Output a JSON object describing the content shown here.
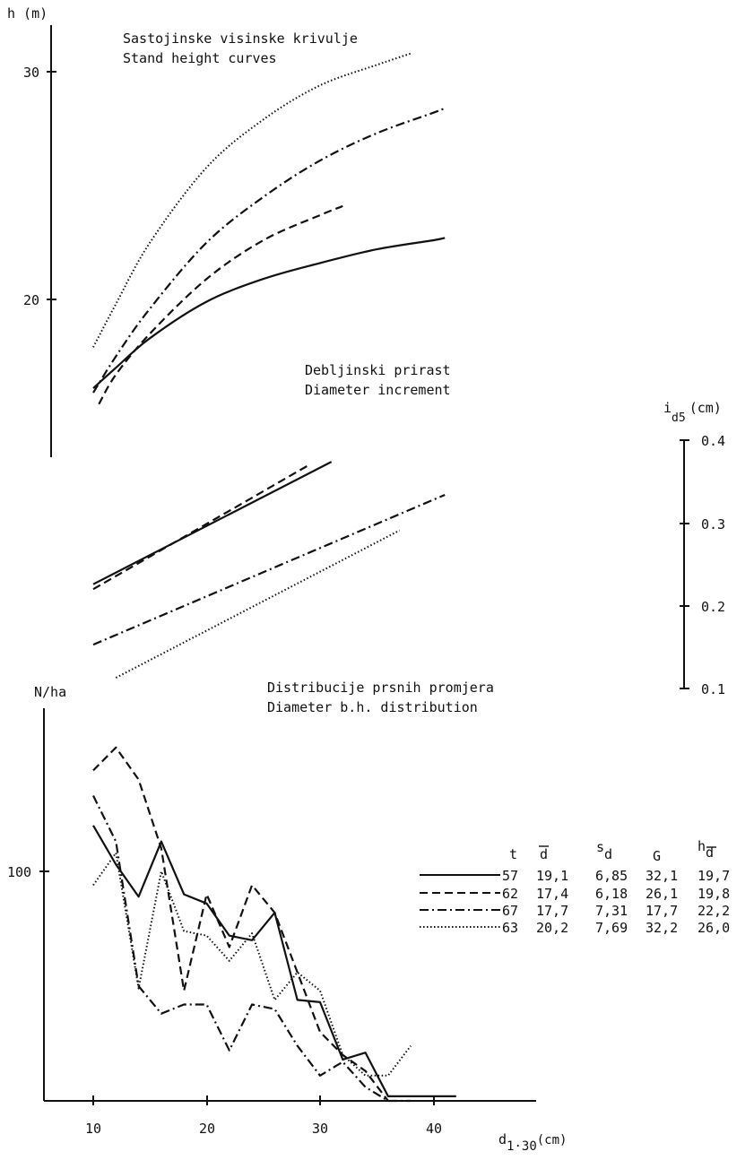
{
  "figure": {
    "top_title_1": "Sastojinske visinske krivulje",
    "top_title_2": "Stand height curves",
    "mid_title_1": "Debljinski prirast",
    "mid_title_2": "Diameter increment",
    "bot_title_1": "Distribucije prsnih promjera",
    "bot_title_2": "Diameter b.h. distribution"
  },
  "axes": {
    "h_label": "h (m)",
    "h_ticks": [
      "30",
      "20"
    ],
    "id5_label_main": "i",
    "id5_label_sub": "d5",
    "id5_label_unit": "(cm)",
    "id5_ticks": [
      "0.4",
      "0.3",
      "0.2",
      "0.1"
    ],
    "n_label": "N/ha",
    "n_ticks": [
      "100"
    ],
    "d_label_main": "d",
    "d_label_sub": "1·30",
    "d_label_unit": "(cm)",
    "d_ticks": [
      "10",
      "20",
      "30",
      "40"
    ]
  },
  "legend": {
    "headers": [
      "t",
      "d̄",
      "s_d",
      "G",
      "h_d̄"
    ],
    "header_t": "t",
    "header_d": "d",
    "header_s": "s",
    "header_s_sub": "d",
    "header_G": "G",
    "header_h": "h",
    "header_h_sub": "d",
    "rows": [
      {
        "t": "57",
        "d": "19,1",
        "s": "6,85",
        "G": "32,1",
        "h": "19,7",
        "style": "solid"
      },
      {
        "t": "62",
        "d": "17,4",
        "s": "6,18",
        "G": "26,1",
        "h": "19,8",
        "style": "dashed"
      },
      {
        "t": "67",
        "d": "17,7",
        "s": "7,31",
        "G": "17,7",
        "h": "22,2",
        "style": "dashdot"
      },
      {
        "t": "63",
        "d": "20,2",
        "s": "7,69",
        "G": "32,2",
        "h": "26,0",
        "style": "dotted"
      }
    ]
  },
  "chart_data": [
    {
      "type": "line",
      "title": "Sastojinske visinske krivulje / Stand height curves",
      "ylabel": "h (m)",
      "xlabel": "d1·30 (cm)",
      "ylim": [
        15,
        32
      ],
      "series": [
        {
          "name": "57",
          "style": "solid",
          "x": [
            10,
            12,
            15,
            20,
            25,
            30,
            35,
            40,
            41
          ],
          "y": [
            16.1,
            17.0,
            18.3,
            19.9,
            20.9,
            21.6,
            22.2,
            22.6,
            22.7
          ]
        },
        {
          "name": "62",
          "style": "dashed",
          "x": [
            10.5,
            12,
            15,
            20,
            25,
            30,
            32
          ],
          "y": [
            15.4,
            16.7,
            18.5,
            20.9,
            22.6,
            23.7,
            24.1
          ]
        },
        {
          "name": "67",
          "style": "dashdot",
          "x": [
            10,
            12,
            15,
            20,
            25,
            30,
            35,
            40,
            41
          ],
          "y": [
            15.9,
            17.5,
            19.6,
            22.5,
            24.5,
            26.1,
            27.3,
            28.2,
            28.4
          ]
        },
        {
          "name": "63",
          "style": "dotted",
          "x": [
            10,
            12,
            15,
            20,
            25,
            30,
            35,
            38
          ],
          "y": [
            17.9,
            19.8,
            22.5,
            25.8,
            27.9,
            29.4,
            30.3,
            30.8
          ]
        }
      ]
    },
    {
      "type": "line",
      "title": "Debljinski prirast / Diameter increment",
      "ylabel": "i d5 (cm)",
      "xlabel": "d1·30 (cm)",
      "ylim": [
        0.1,
        0.4
      ],
      "series": [
        {
          "name": "57",
          "style": "solid",
          "x": [
            10,
            31
          ],
          "y": [
            0.226,
            0.374
          ]
        },
        {
          "name": "62",
          "style": "dashed",
          "x": [
            10,
            29
          ],
          "y": [
            0.22,
            0.37
          ]
        },
        {
          "name": "67",
          "style": "dashdot",
          "x": [
            10,
            41
          ],
          "y": [
            0.153,
            0.334
          ]
        },
        {
          "name": "63",
          "style": "dotted",
          "x": [
            12,
            37
          ],
          "y": [
            0.113,
            0.291
          ]
        }
      ]
    },
    {
      "type": "line",
      "title": "Distribucije prsnih promjera / Diameter b.h. distribution",
      "ylabel": "N/ha",
      "xlabel": "d1·30 (cm)",
      "xlim": [
        5,
        48
      ],
      "ylim": [
        0,
        160
      ],
      "series": [
        {
          "name": "57",
          "style": "solid",
          "x": [
            10,
            12,
            14,
            16,
            18,
            20,
            22,
            24,
            26,
            28,
            30,
            32,
            34,
            36,
            38,
            40,
            42
          ],
          "y": [
            120,
            103,
            89,
            113,
            90,
            86,
            72,
            70,
            82,
            44,
            43,
            18,
            21,
            2,
            2,
            2,
            2
          ]
        },
        {
          "name": "62",
          "style": "dashed",
          "x": [
            10,
            12,
            14,
            16,
            18,
            20,
            22,
            24,
            26,
            28,
            30,
            32,
            34,
            36
          ],
          "y": [
            144,
            154,
            140,
            110,
            48,
            90,
            67,
            94,
            82,
            56,
            30,
            20,
            13,
            0
          ]
        },
        {
          "name": "67",
          "style": "dashdot",
          "x": [
            10,
            12,
            14,
            16,
            18,
            20,
            22,
            24,
            26,
            28,
            30,
            32,
            34,
            36,
            38
          ],
          "y": [
            133,
            113,
            50,
            38,
            42,
            42,
            22,
            42,
            40,
            24,
            11,
            17,
            6,
            0,
            0
          ]
        },
        {
          "name": "63",
          "style": "dotted",
          "x": [
            10,
            12,
            14,
            16,
            18,
            20,
            22,
            24,
            26,
            28,
            30,
            32,
            34,
            36,
            38
          ],
          "y": [
            94,
            108,
            49,
            100,
            74,
            72,
            61,
            73,
            44,
            56,
            48,
            20,
            11,
            11,
            24
          ]
        }
      ]
    }
  ]
}
